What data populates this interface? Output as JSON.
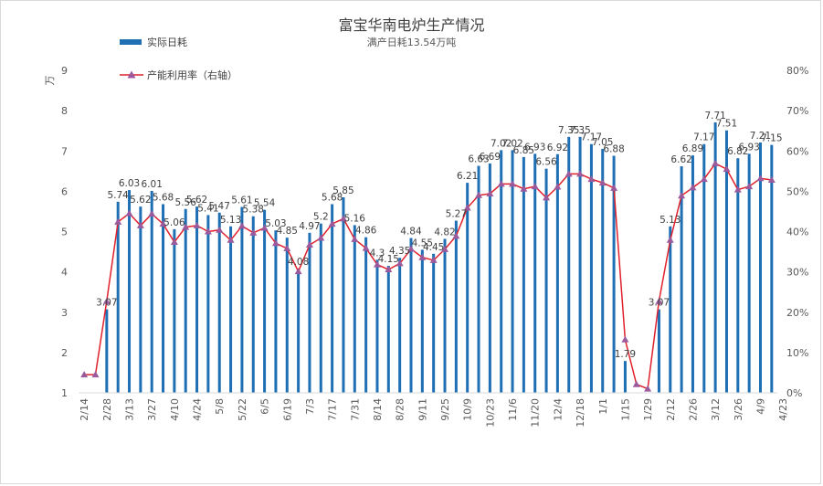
{
  "chart_data": {
    "type": "bar",
    "title": "富宝华南电炉生产情况",
    "subtitle": "满产日耗13.54万吨",
    "ylabel": "万",
    "ylim": [
      1,
      9
    ],
    "y2lim": [
      0,
      0.8
    ],
    "y_ticks": [
      "1",
      "2",
      "3",
      "4",
      "5",
      "6",
      "7",
      "8",
      "9"
    ],
    "y2_ticks": [
      "0%",
      "10%",
      "20%",
      "30%",
      "40%",
      "50%",
      "60%",
      "70%",
      "80%"
    ],
    "x_tick_labels": [
      "2/14",
      "2/28",
      "3/13",
      "3/27",
      "4/10",
      "4/24",
      "5/8",
      "5/22",
      "6/5",
      "6/19",
      "7/3",
      "7/17",
      "7/31",
      "8/14",
      "8/28",
      "9/11",
      "9/25",
      "10/9",
      "10/23",
      "11/6",
      "11/20",
      "12/4",
      "12/18",
      "1/1",
      "1/15",
      "1/29",
      "2/12",
      "2/26",
      "3/12",
      "3/26",
      "4/9",
      "4/23"
    ],
    "grid": false,
    "colors": {
      "bar": "#1f6fb4",
      "line": "#e0212c",
      "marker": "#9a5a9c"
    },
    "series": [
      {
        "name": "实际日耗",
        "kind": "bar",
        "axis": "left",
        "values": [
          null,
          null,
          3.07,
          5.74,
          6.03,
          5.62,
          6.01,
          5.68,
          5.06,
          5.56,
          5.62,
          5.41,
          5.47,
          5.13,
          5.61,
          5.38,
          5.54,
          5.03,
          4.85,
          4.08,
          4.97,
          5.2,
          5.68,
          5.85,
          5.16,
          4.86,
          4.3,
          4.15,
          4.35,
          4.84,
          4.55,
          4.45,
          4.82,
          5.27,
          6.21,
          6.63,
          6.69,
          7.02,
          7.02,
          6.85,
          6.93,
          6.56,
          6.92,
          7.35,
          7.35,
          7.17,
          7.05,
          6.88,
          1.79,
          null,
          null,
          3.07,
          5.13,
          6.62,
          6.89,
          7.17,
          7.71,
          7.51,
          6.82,
          6.93,
          7.21,
          7.15
        ],
        "data_labels": [
          "",
          "",
          "3.07",
          "5.74",
          "6.03",
          "5.62",
          "6.01",
          "5.68",
          "5.06",
          "5.56",
          "5.62",
          "5.41",
          "5.47",
          "5.13",
          "5.61",
          "5.38",
          "5.54",
          "5.03",
          "4.85",
          "4.08",
          "4.97",
          "5.2",
          "5.68",
          "5.85",
          "5.16",
          "4.86",
          "4.3",
          "4.15",
          "4.35",
          "4.84",
          "4.55",
          "4.45",
          "4.82",
          "5.27",
          "6.21",
          "6.63",
          "6.69",
          "7.02",
          "7.02",
          "6.85",
          "6.93",
          "6.56",
          "6.92",
          "7.35",
          "7.35",
          "7.17",
          "7.05",
          "6.88",
          "1.79",
          "",
          "",
          "3.07",
          "5.13",
          "6.62",
          "6.89",
          "7.17",
          "7.71",
          "7.51",
          "6.82",
          "6.93",
          "7.21",
          "7.15"
        ]
      },
      {
        "name": "产能利用率（右轴）",
        "kind": "line",
        "axis": "right",
        "values": [
          0.045,
          0.045,
          0.227,
          0.424,
          0.445,
          0.415,
          0.444,
          0.419,
          0.374,
          0.411,
          0.415,
          0.4,
          0.404,
          0.379,
          0.414,
          0.397,
          0.409,
          0.371,
          0.358,
          0.301,
          0.367,
          0.384,
          0.419,
          0.432,
          0.381,
          0.359,
          0.318,
          0.306,
          0.321,
          0.357,
          0.336,
          0.329,
          0.356,
          0.389,
          0.459,
          0.49,
          0.494,
          0.518,
          0.518,
          0.506,
          0.512,
          0.484,
          0.511,
          0.543,
          0.543,
          0.53,
          0.521,
          0.508,
          0.132,
          0.021,
          0.01,
          0.227,
          0.379,
          0.489,
          0.509,
          0.53,
          0.569,
          0.555,
          0.504,
          0.512,
          0.532,
          0.528
        ]
      }
    ]
  }
}
